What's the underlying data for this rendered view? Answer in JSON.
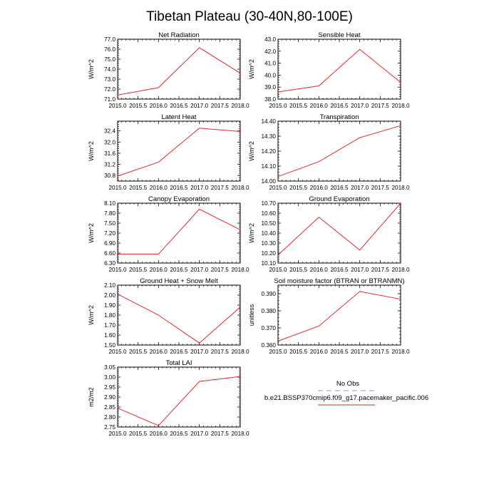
{
  "figure_title": "Tibetan Plateau (30-40N,80-100E)",
  "legend": {
    "entries": [
      {
        "label": "No Obs",
        "color": "#a9a9d6",
        "dashed": true
      },
      {
        "label": "b.e21.BSSP370cmip6.f09_g17.pacemaker_pacific.006",
        "color": "#e8262a",
        "dashed": false
      }
    ]
  },
  "chart_data": [
    {
      "type": "line",
      "title": "Net Radiation",
      "ylabel": "W/m^2",
      "x": [
        2015,
        2016,
        2017,
        2018
      ],
      "xticks": [
        "2015.0",
        "2015.5",
        "2016.0",
        "2016.5",
        "2017.0",
        "2017.5",
        "2018.0"
      ],
      "xlim": [
        2015,
        2018
      ],
      "yticks": [
        "71.0",
        "72.0",
        "73.0",
        "74.0",
        "75.0",
        "76.0",
        "77.0"
      ],
      "ylim": [
        71.0,
        77.0
      ],
      "series": [
        {
          "name": "b.e21.BSSP370cmip6.f09_g17.pacemaker_pacific.006",
          "values": [
            71.4,
            72.15,
            76.15,
            73.6
          ]
        }
      ]
    },
    {
      "type": "line",
      "title": "Sensible Heat",
      "ylabel": "W/m^2",
      "x": [
        2015,
        2016,
        2017,
        2018
      ],
      "xticks": [
        "2015.0",
        "2015.5",
        "2016.0",
        "2016.5",
        "2017.0",
        "2017.5",
        "2018.0"
      ],
      "xlim": [
        2015,
        2018
      ],
      "yticks": [
        "38.0",
        "39.0",
        "40.0",
        "41.0",
        "42.0",
        "43.0"
      ],
      "ylim": [
        38.0,
        43.0
      ],
      "series": [
        {
          "name": "b.e21.BSSP370cmip6.f09_g17.pacemaker_pacific.006",
          "values": [
            38.6,
            39.1,
            42.15,
            39.4
          ]
        }
      ]
    },
    {
      "type": "line",
      "title": "Latent Heat",
      "ylabel": "W/m^2",
      "x": [
        2015,
        2016,
        2017,
        2018
      ],
      "xticks": [
        "2015.0",
        "2015.5",
        "2016.0",
        "2016.5",
        "2017.0",
        "2017.5",
        "2018.0"
      ],
      "xlim": [
        2015,
        2018
      ],
      "yticks": [
        "30.8",
        "31.2",
        "31.6",
        "32.0",
        "32.4"
      ],
      "ylim": [
        30.6,
        32.75
      ],
      "series": [
        {
          "name": "b.e21.BSSP370cmip6.f09_g17.pacemaker_pacific.006",
          "values": [
            30.78,
            31.28,
            32.5,
            32.38
          ]
        }
      ]
    },
    {
      "type": "line",
      "title": "Transpiration",
      "ylabel": "W/m^2",
      "x": [
        2015,
        2016,
        2017,
        2018
      ],
      "xticks": [
        "2015.0",
        "2015.5",
        "2016.0",
        "2016.5",
        "2017.0",
        "2017.5",
        "2018.0"
      ],
      "xlim": [
        2015,
        2018
      ],
      "yticks": [
        "14.00",
        "14.10",
        "14.20",
        "14.30",
        "14.40"
      ],
      "ylim": [
        14.0,
        14.4
      ],
      "series": [
        {
          "name": "b.e21.BSSP370cmip6.f09_g17.pacemaker_pacific.006",
          "values": [
            14.03,
            14.13,
            14.29,
            14.37
          ]
        }
      ]
    },
    {
      "type": "line",
      "title": "Canopy Evaporation",
      "ylabel": "W/m^2",
      "x": [
        2015,
        2016,
        2017,
        2018
      ],
      "xticks": [
        "2015.0",
        "2015.5",
        "2016.0",
        "2016.5",
        "2017.0",
        "2017.5",
        "2018.0"
      ],
      "xlim": [
        2015,
        2018
      ],
      "yticks": [
        "6.30",
        "6.60",
        "6.90",
        "7.20",
        "7.50",
        "7.80",
        "8.10"
      ],
      "ylim": [
        6.3,
        8.1
      ],
      "series": [
        {
          "name": "b.e21.BSSP370cmip6.f09_g17.pacemaker_pacific.006",
          "values": [
            6.57,
            6.57,
            7.92,
            7.3
          ]
        }
      ]
    },
    {
      "type": "line",
      "title": "Ground Evaporation",
      "ylabel": "W/m^2",
      "x": [
        2015,
        2016,
        2017,
        2018
      ],
      "xticks": [
        "2015.0",
        "2015.5",
        "2016.0",
        "2016.5",
        "2017.0",
        "2017.5",
        "2018.0"
      ],
      "xlim": [
        2015,
        2018
      ],
      "yticks": [
        "10.10",
        "10.20",
        "10.30",
        "10.40",
        "10.50",
        "10.60",
        "10.70"
      ],
      "ylim": [
        10.1,
        10.7
      ],
      "series": [
        {
          "name": "b.e21.BSSP370cmip6.f09_g17.pacemaker_pacific.006",
          "values": [
            10.18,
            10.56,
            10.23,
            10.7
          ]
        }
      ]
    },
    {
      "type": "line",
      "title": "Ground Heat + Snow Melt",
      "ylabel": "W/m^2",
      "x": [
        2015,
        2016,
        2017,
        2018
      ],
      "xticks": [
        "2015.0",
        "2015.5",
        "2016.0",
        "2016.5",
        "2017.0",
        "2017.5",
        "2018.0"
      ],
      "xlim": [
        2015,
        2018
      ],
      "yticks": [
        "1.50",
        "1.60",
        "1.70",
        "1.80",
        "1.90",
        "2.00",
        "2.10"
      ],
      "ylim": [
        1.5,
        2.1
      ],
      "series": [
        {
          "name": "b.e21.BSSP370cmip6.f09_g17.pacemaker_pacific.006",
          "values": [
            2.01,
            1.8,
            1.52,
            1.88
          ]
        }
      ]
    },
    {
      "type": "line",
      "title": "Soil moisture factor (BTRAN or BTRANMN)",
      "ylabel": "unitless",
      "x": [
        2015,
        2016,
        2017,
        2018
      ],
      "xticks": [
        "2015.0",
        "2015.5",
        "2016.0",
        "2016.5",
        "2017.0",
        "2017.5",
        "2018.0"
      ],
      "xlim": [
        2015,
        2018
      ],
      "yticks": [
        "0.360",
        "0.370",
        "0.380",
        "0.390"
      ],
      "ylim": [
        0.36,
        0.395
      ],
      "series": [
        {
          "name": "b.e21.BSSP370cmip6.f09_g17.pacemaker_pacific.006",
          "values": [
            0.3623,
            0.3711,
            0.3913,
            0.3868
          ]
        }
      ]
    },
    {
      "type": "line",
      "title": "Total LAI",
      "ylabel": "m2/m2",
      "x": [
        2015,
        2016,
        2017,
        2018
      ],
      "xticks": [
        "2015.0",
        "2015.5",
        "2016.0",
        "2016.5",
        "2017.0",
        "2017.5",
        "2018.0"
      ],
      "xlim": [
        2015,
        2018
      ],
      "yticks": [
        "2.75",
        "2.80",
        "2.85",
        "2.90",
        "2.95",
        "3.00",
        "3.05"
      ],
      "ylim": [
        2.75,
        3.05
      ],
      "series": [
        {
          "name": "b.e21.BSSP370cmip6.f09_g17.pacemaker_pacific.006",
          "values": [
            2.845,
            2.757,
            2.978,
            3.003
          ]
        }
      ]
    }
  ]
}
